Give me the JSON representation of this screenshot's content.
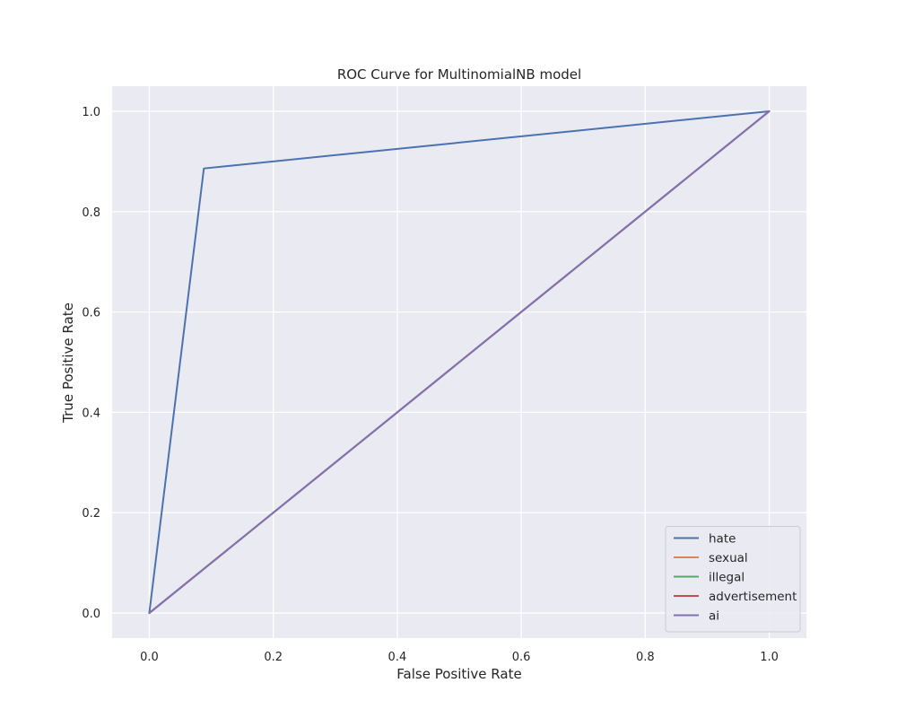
{
  "chart_data": {
    "type": "line",
    "title": "ROC Curve for MultinomialNB model",
    "xlabel": "False Positive Rate",
    "ylabel": "True Positive Rate",
    "xlim": [
      -0.06,
      1.06
    ],
    "ylim": [
      -0.05,
      1.05
    ],
    "xticks": [
      0.0,
      0.2,
      0.4,
      0.6,
      0.8,
      1.0
    ],
    "yticks": [
      0.0,
      0.2,
      0.4,
      0.6,
      0.8,
      1.0
    ],
    "xtick_labels": [
      "0.0",
      "0.2",
      "0.4",
      "0.6",
      "0.8",
      "1.0"
    ],
    "ytick_labels": [
      "0.0",
      "0.2",
      "0.4",
      "0.6",
      "0.8",
      "1.0"
    ],
    "grid": true,
    "background": "#eaeaf2",
    "legend_position": "lower-right",
    "series": [
      {
        "name": "hate",
        "color": "#4c72b0",
        "x": [
          0.0,
          0.088,
          1.0
        ],
        "y": [
          0.0,
          0.886,
          1.0
        ]
      },
      {
        "name": "sexual",
        "color": "#dd8452",
        "x": [
          0.0,
          1.0
        ],
        "y": [
          0.0,
          1.0
        ]
      },
      {
        "name": "illegal",
        "color": "#55a868",
        "x": [
          0.0,
          1.0
        ],
        "y": [
          0.0,
          1.0
        ]
      },
      {
        "name": "advertisement",
        "color": "#c44e52",
        "x": [
          0.0,
          1.0
        ],
        "y": [
          0.0,
          1.0
        ]
      },
      {
        "name": "ai",
        "color": "#8172b3",
        "x": [
          0.0,
          1.0
        ],
        "y": [
          0.0,
          1.0
        ]
      }
    ]
  }
}
